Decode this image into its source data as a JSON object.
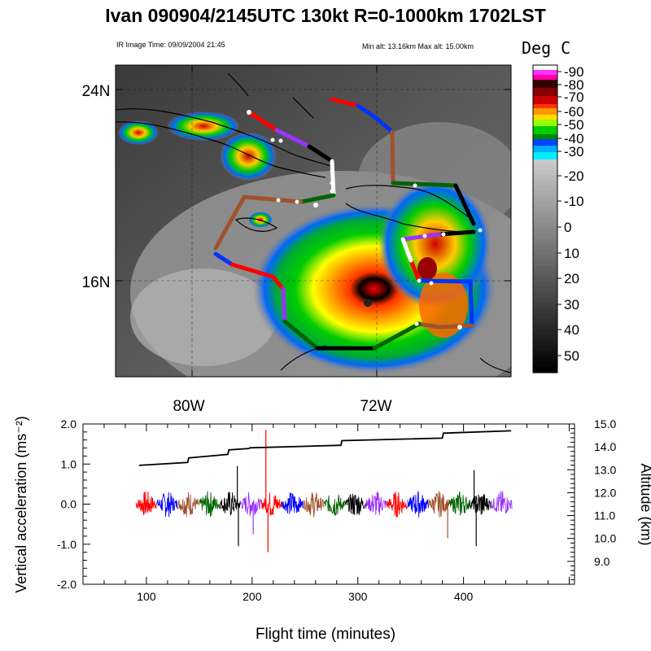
{
  "title": "Ivan 090904/2145UTC 130kt  R=0-1000km 1702LST",
  "map": {
    "ir_time": "IR Image Time: 09/09/2004 21:45",
    "alt_range": "Min alt: 13.16km  Max alt: 15.00km",
    "lat_labels": [
      "24N",
      "16N"
    ],
    "lon_labels": [
      "80W",
      "72W"
    ],
    "colorbar": {
      "title": "Deg C",
      "labels": [
        "-90",
        "-80",
        "-70",
        "-60",
        "-50",
        "-40",
        "-30",
        "-20",
        "-10",
        "0",
        "10",
        "20",
        "30",
        "40",
        "50"
      ],
      "colors": {
        "coldest": "#ff33ff",
        "red": "#cc0000",
        "orange": "#ff9900",
        "yellow": "#ffff00",
        "green": "#00cc00",
        "blue": "#0033ff",
        "cyan": "#00ccff",
        "gray_scale": "#808080"
      }
    },
    "flight_track_colors": [
      "red",
      "blue",
      "sienna",
      "darkgreen",
      "black",
      "purple"
    ]
  },
  "chart_data": {
    "type": "line",
    "xlabel": "Flight time (minutes)",
    "ylabel_left": "Vertical acceleration (ms⁻²)",
    "ylabel_right": "Altitude (km)",
    "xlim": [
      40,
      505
    ],
    "x_ticks": [
      "100",
      "200",
      "300",
      "400"
    ],
    "y_left_ticks": [
      "2.0",
      "1.0",
      "0.0",
      "-1.0",
      "-2.0"
    ],
    "ylim_left": [
      -2.0,
      2.0
    ],
    "y_right_ticks": [
      "15.0",
      "14.0",
      "13.0",
      "12.0",
      "11.0",
      "10.0",
      "9.0"
    ],
    "ylim_right": [
      8.0,
      15.0
    ],
    "series": [
      {
        "name": "Altitude",
        "axis": "right",
        "x": [
          93,
          139,
          140,
          177,
          178,
          197,
          198,
          284,
          285,
          380,
          381,
          445
        ],
        "y": [
          13.19,
          13.32,
          13.52,
          13.67,
          13.87,
          13.93,
          13.96,
          14.07,
          14.27,
          14.38,
          14.6,
          14.7
        ]
      },
      {
        "name": "Vertical acceleration",
        "axis": "left",
        "x_range": [
          90,
          446
        ],
        "segment_colors": [
          "red",
          "blue",
          "sienna",
          "darkgreen",
          "black",
          "purple",
          "red",
          "blue",
          "sienna",
          "darkgreen",
          "black",
          "purple",
          "red",
          "blue",
          "sienna",
          "darkgreen",
          "black",
          "purple"
        ],
        "peaks": [
          {
            "x": 186,
            "y": 0.95
          },
          {
            "x": 187,
            "y": -1.05
          },
          {
            "x": 201,
            "y": -0.75
          },
          {
            "x": 213,
            "y": 1.85
          },
          {
            "x": 215,
            "y": -1.2
          },
          {
            "x": 410,
            "y": 0.85
          },
          {
            "x": 412,
            "y": -1.05
          },
          {
            "x": 385,
            "y": -0.85
          }
        ]
      }
    ]
  }
}
